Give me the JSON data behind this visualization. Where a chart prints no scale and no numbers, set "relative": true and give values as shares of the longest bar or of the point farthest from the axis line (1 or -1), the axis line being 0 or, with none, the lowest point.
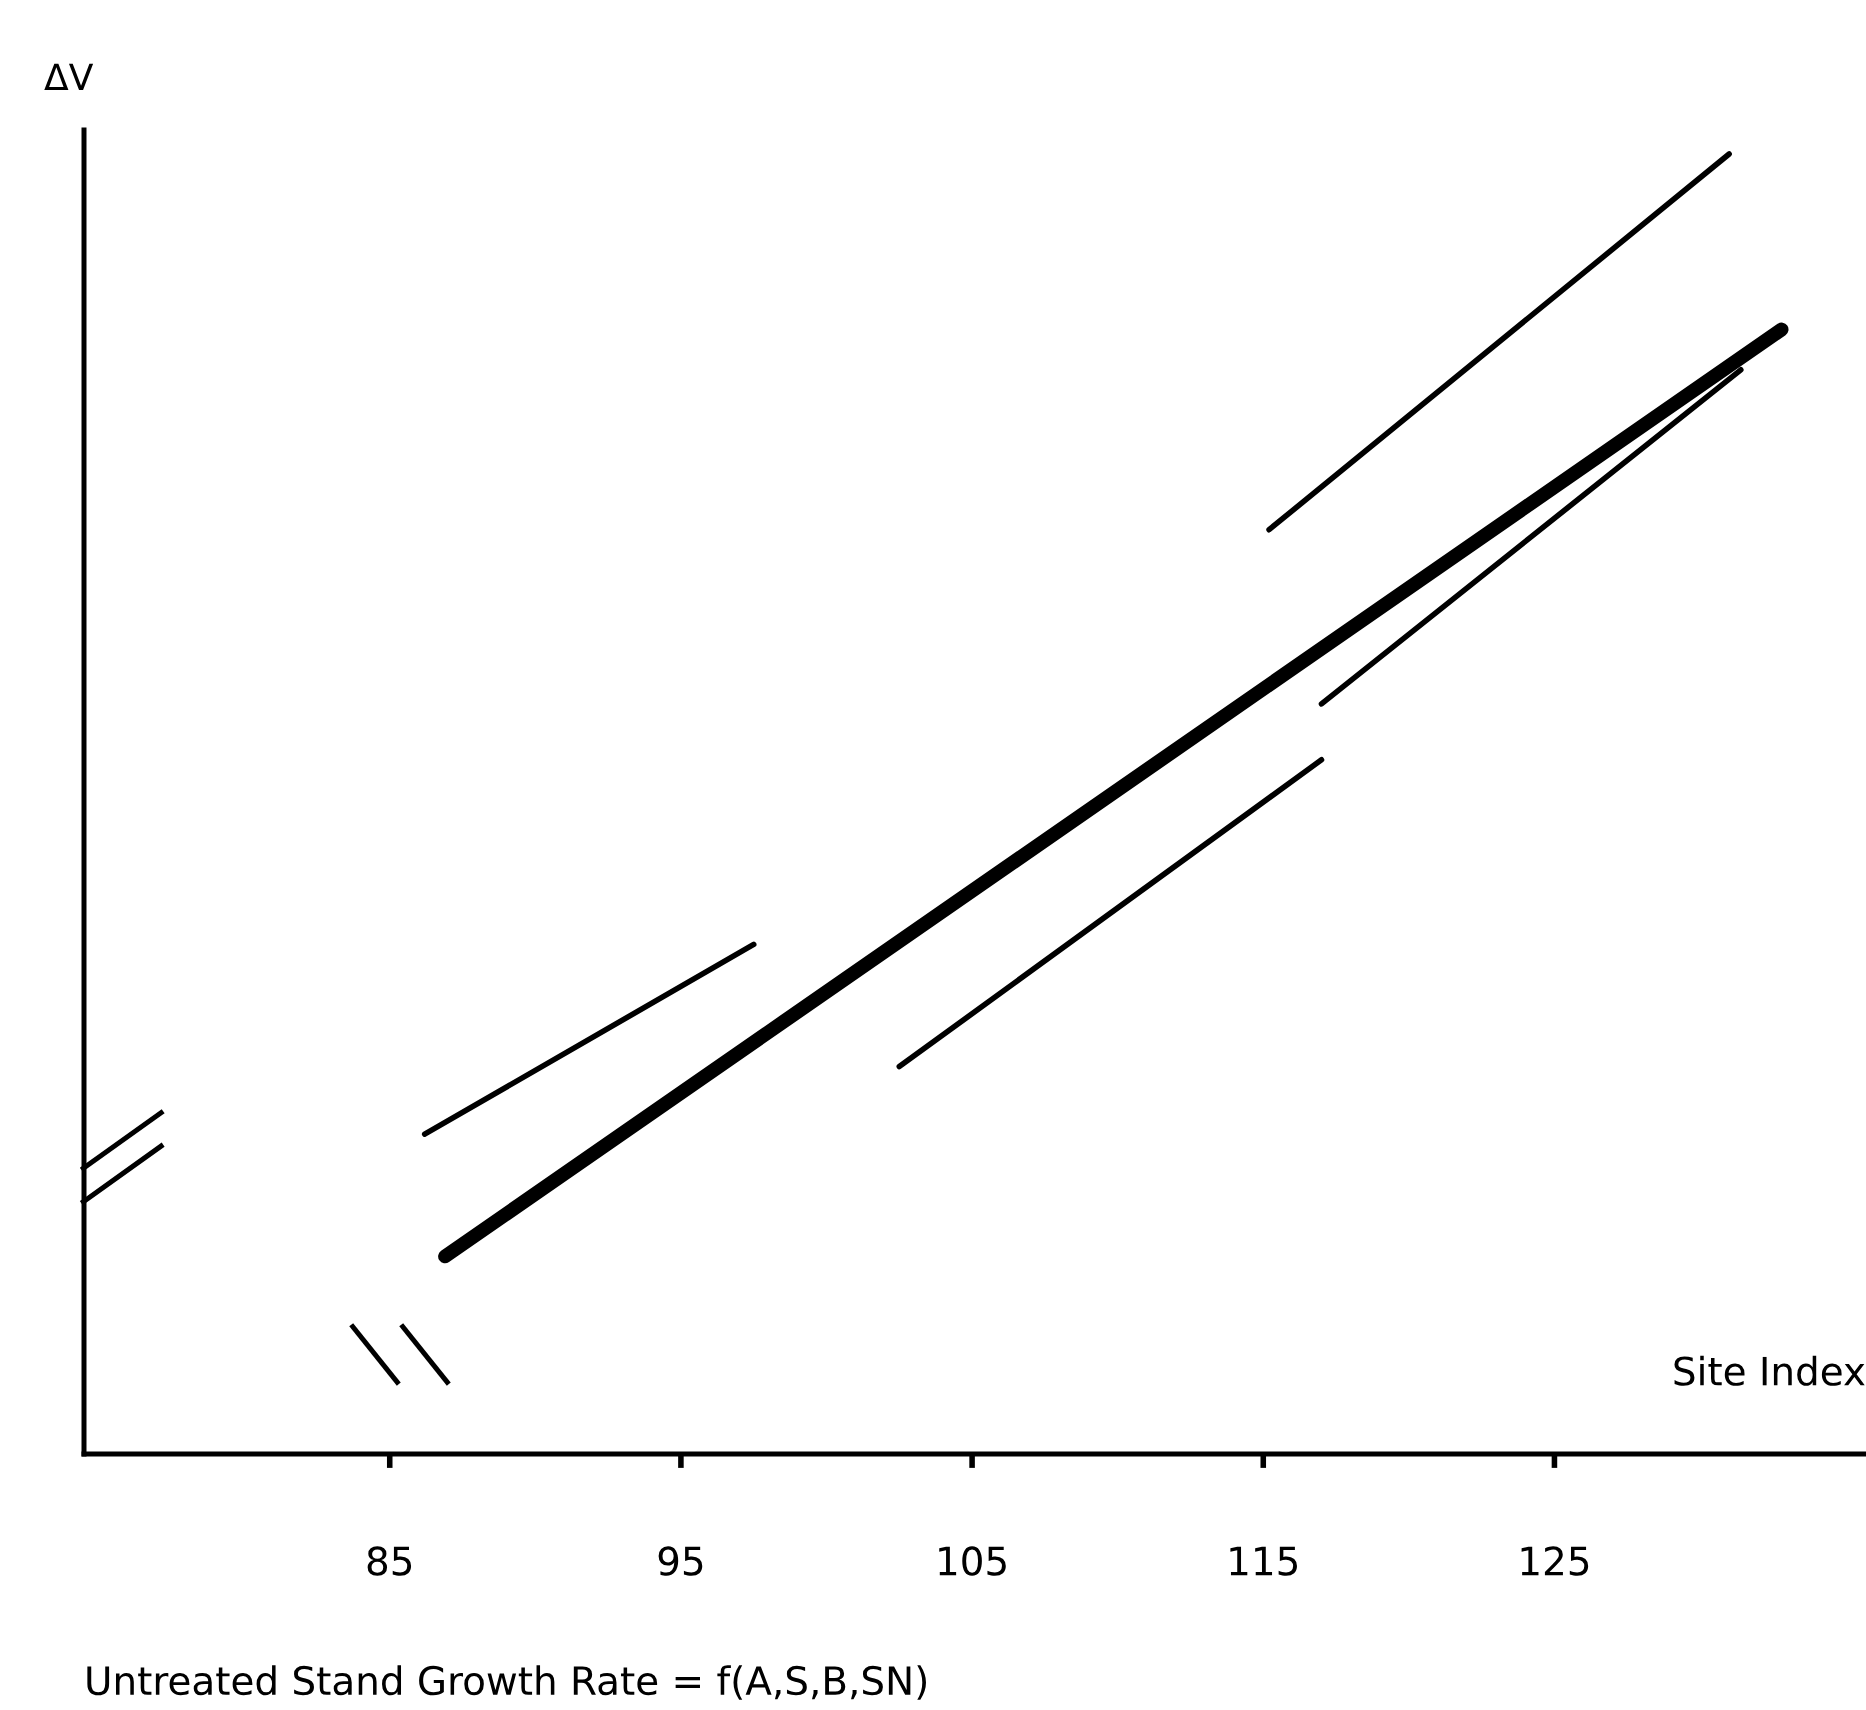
{
  "chart_data": {
    "type": "line",
    "relative": true,
    "xlabel": "Site Index",
    "ylabel": "ΔV",
    "annotations": [
      "Untreated Stand Growth Rate = f(A,S,B,SN)"
    ],
    "xlim": [
      74.5,
      135.7
    ],
    "xticks": [
      85,
      95,
      105,
      115,
      125
    ],
    "grid": false,
    "legend": false,
    "marker": "none",
    "line_style": "solid",
    "series": [
      {
        "color": "#000000",
        "x": [
          86.9,
          132.8
        ],
        "values": [
          0.152,
          0.865
        ]
      },
      {
        "color": "#000000",
        "x": [
          86.2,
          97.5
        ],
        "values": [
          0.246,
          0.392
        ]
      },
      {
        "color": "#000000",
        "x": [
          115.2,
          131.0
        ],
        "values": [
          0.711,
          1.0
        ]
      },
      {
        "color": "#000000",
        "x": [
          102.5,
          117.0
        ],
        "values": [
          0.298,
          0.534
        ]
      },
      {
        "color": "#000000",
        "x": [
          117.0,
          131.4
        ],
        "values": [
          0.577,
          0.834
        ]
      }
    ]
  }
}
